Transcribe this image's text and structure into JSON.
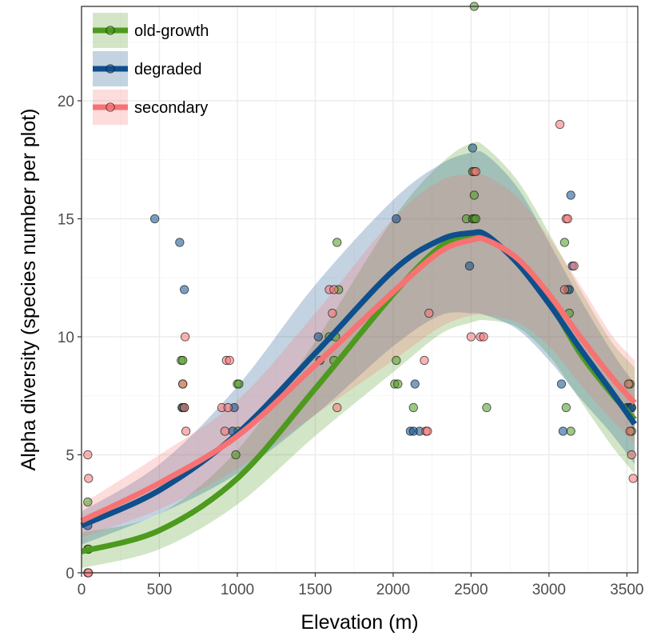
{
  "chart_data": {
    "type": "scatter",
    "xlabel": "Elevation (m)",
    "ylabel": "Alpha diversity (species number per plot)",
    "xlim": [
      0,
      3570
    ],
    "ylim": [
      0,
      24
    ],
    "x_ticks": [
      0,
      500,
      1000,
      1500,
      2000,
      2500,
      3000,
      3500
    ],
    "y_ticks": [
      0,
      5,
      10,
      15,
      20
    ],
    "grid": true,
    "legend_position": "top-left",
    "series": [
      {
        "name": "old-growth",
        "color": "#4d9a1e",
        "points": [
          [
            40,
            1
          ],
          [
            45,
            1
          ],
          [
            40,
            3
          ],
          [
            640,
            9
          ],
          [
            650,
            9
          ],
          [
            645,
            7
          ],
          [
            660,
            7
          ],
          [
            650,
            8
          ],
          [
            990,
            5
          ],
          [
            1000,
            8
          ],
          [
            1010,
            8
          ],
          [
            1005,
            6
          ],
          [
            1590,
            10
          ],
          [
            1630,
            10
          ],
          [
            1620,
            9
          ],
          [
            1640,
            14
          ],
          [
            1650,
            12
          ],
          [
            2010,
            8
          ],
          [
            2020,
            9
          ],
          [
            2030,
            8
          ],
          [
            2130,
            7
          ],
          [
            2470,
            15
          ],
          [
            2510,
            15
          ],
          [
            2520,
            15
          ],
          [
            2530,
            15
          ],
          [
            2520,
            16
          ],
          [
            2510,
            17
          ],
          [
            2520,
            24
          ],
          [
            2600,
            7
          ],
          [
            3100,
            14
          ],
          [
            3110,
            7
          ],
          [
            3120,
            12
          ],
          [
            3130,
            11
          ],
          [
            3140,
            6
          ],
          [
            3510,
            7
          ],
          [
            3520,
            8
          ],
          [
            3530,
            7
          ],
          [
            3530,
            6
          ]
        ],
        "curve": [
          [
            0,
            0.9
          ],
          [
            500,
            1.8
          ],
          [
            1000,
            4.0
          ],
          [
            1500,
            7.8
          ],
          [
            2000,
            11.8
          ],
          [
            2300,
            13.8
          ],
          [
            2500,
            14.3
          ],
          [
            2600,
            14.2
          ],
          [
            2800,
            13.2
          ],
          [
            3000,
            11.5
          ],
          [
            3200,
            9.3
          ],
          [
            3400,
            7.6
          ],
          [
            3550,
            6.5
          ]
        ],
        "band_upper": [
          [
            0,
            1.7
          ],
          [
            500,
            2.5
          ],
          [
            1000,
            5.2
          ],
          [
            1500,
            9.8
          ],
          [
            2000,
            15.0
          ],
          [
            2300,
            17.3
          ],
          [
            2500,
            18.2
          ],
          [
            2600,
            18.0
          ],
          [
            2800,
            16.6
          ],
          [
            3000,
            14.4
          ],
          [
            3200,
            12.0
          ],
          [
            3400,
            9.8
          ],
          [
            3550,
            8.7
          ]
        ],
        "band_lower": [
          [
            0,
            0.2
          ],
          [
            500,
            1.0
          ],
          [
            1000,
            2.9
          ],
          [
            1500,
            5.8
          ],
          [
            2000,
            8.5
          ],
          [
            2300,
            10.1
          ],
          [
            2500,
            10.6
          ],
          [
            2600,
            10.7
          ],
          [
            2800,
            10.4
          ],
          [
            3000,
            9.2
          ],
          [
            3200,
            7.3
          ],
          [
            3400,
            5.4
          ],
          [
            3550,
            4.2
          ]
        ]
      },
      {
        "name": "degraded",
        "color": "#0e4f8c",
        "points": [
          [
            40,
            2
          ],
          [
            470,
            15
          ],
          [
            630,
            14
          ],
          [
            660,
            12
          ],
          [
            650,
            7
          ],
          [
            970,
            6
          ],
          [
            980,
            7
          ],
          [
            1520,
            10
          ],
          [
            1530,
            9
          ],
          [
            2020,
            15
          ],
          [
            2110,
            6
          ],
          [
            2130,
            6
          ],
          [
            2140,
            8
          ],
          [
            2170,
            6
          ],
          [
            2490,
            13
          ],
          [
            2510,
            18
          ],
          [
            3080,
            8
          ],
          [
            3090,
            6
          ],
          [
            3130,
            12
          ],
          [
            3140,
            16
          ],
          [
            3150,
            13
          ],
          [
            3500,
            7
          ],
          [
            3520,
            7
          ],
          [
            3530,
            7
          ]
        ],
        "curve": [
          [
            0,
            2.0
          ],
          [
            500,
            3.5
          ],
          [
            1000,
            5.9
          ],
          [
            1500,
            9.3
          ],
          [
            2000,
            12.8
          ],
          [
            2300,
            14.1
          ],
          [
            2500,
            14.4
          ],
          [
            2600,
            14.3
          ],
          [
            2800,
            13.1
          ],
          [
            3000,
            11.4
          ],
          [
            3200,
            9.5
          ],
          [
            3400,
            7.7
          ],
          [
            3550,
            6.3
          ]
        ],
        "band_upper": [
          [
            0,
            2.6
          ],
          [
            500,
            4.6
          ],
          [
            1000,
            7.9
          ],
          [
            1500,
            12.2
          ],
          [
            2000,
            15.8
          ],
          [
            2300,
            17.3
          ],
          [
            2500,
            17.8
          ],
          [
            2600,
            17.7
          ],
          [
            2800,
            16.3
          ],
          [
            3000,
            14.0
          ],
          [
            3200,
            11.6
          ],
          [
            3400,
            9.4
          ],
          [
            3550,
            8.0
          ]
        ],
        "band_lower": [
          [
            0,
            1.2
          ],
          [
            500,
            2.5
          ],
          [
            1000,
            4.2
          ],
          [
            1500,
            6.7
          ],
          [
            2000,
            9.6
          ],
          [
            2300,
            10.9
          ],
          [
            2500,
            11.0
          ],
          [
            2600,
            10.9
          ],
          [
            2800,
            10.3
          ],
          [
            3000,
            9.0
          ],
          [
            3200,
            7.4
          ],
          [
            3400,
            5.9
          ],
          [
            3550,
            4.6
          ]
        ]
      },
      {
        "name": "secondary",
        "color": "#f77272",
        "points": [
          [
            40,
            0
          ],
          [
            45,
            0
          ],
          [
            40,
            5
          ],
          [
            45,
            4
          ],
          [
            650,
            8
          ],
          [
            660,
            7
          ],
          [
            665,
            10
          ],
          [
            670,
            6
          ],
          [
            900,
            7
          ],
          [
            930,
            9
          ],
          [
            950,
            9
          ],
          [
            920,
            6
          ],
          [
            940,
            7
          ],
          [
            1590,
            12
          ],
          [
            1610,
            11
          ],
          [
            1620,
            12
          ],
          [
            1640,
            7
          ],
          [
            2200,
            9
          ],
          [
            2210,
            6
          ],
          [
            2220,
            6
          ],
          [
            2230,
            11
          ],
          [
            2500,
            10
          ],
          [
            2520,
            17
          ],
          [
            2530,
            17
          ],
          [
            2560,
            10
          ],
          [
            2580,
            10
          ],
          [
            3070,
            19
          ],
          [
            3100,
            12
          ],
          [
            3110,
            15
          ],
          [
            3120,
            15
          ],
          [
            3160,
            13
          ],
          [
            3510,
            8
          ],
          [
            3520,
            6
          ],
          [
            3530,
            5
          ],
          [
            3540,
            4
          ]
        ],
        "curve": [
          [
            0,
            2.2
          ],
          [
            500,
            3.8
          ],
          [
            1000,
            5.8
          ],
          [
            1500,
            8.8
          ],
          [
            2000,
            11.9
          ],
          [
            2300,
            13.6
          ],
          [
            2500,
            14.1
          ],
          [
            2600,
            14.1
          ],
          [
            2800,
            13.3
          ],
          [
            3000,
            11.8
          ],
          [
            3200,
            10.0
          ],
          [
            3400,
            8.3
          ],
          [
            3550,
            7.2
          ]
        ],
        "band_upper": [
          [
            0,
            2.9
          ],
          [
            500,
            5.0
          ],
          [
            1000,
            7.3
          ],
          [
            1500,
            11.0
          ],
          [
            2000,
            15.0
          ],
          [
            2300,
            16.6
          ],
          [
            2500,
            16.9
          ],
          [
            2600,
            16.8
          ],
          [
            2800,
            15.9
          ],
          [
            3000,
            14.2
          ],
          [
            3200,
            12.2
          ],
          [
            3400,
            10.1
          ],
          [
            3550,
            9.0
          ]
        ],
        "band_lower": [
          [
            0,
            1.5
          ],
          [
            500,
            2.7
          ],
          [
            1000,
            4.4
          ],
          [
            1500,
            6.7
          ],
          [
            2000,
            9.0
          ],
          [
            2300,
            10.4
          ],
          [
            2500,
            10.9
          ],
          [
            2600,
            10.9
          ],
          [
            2800,
            10.6
          ],
          [
            3000,
            9.6
          ],
          [
            3200,
            8.0
          ],
          [
            3400,
            6.5
          ],
          [
            3550,
            5.5
          ]
        ]
      }
    ]
  }
}
